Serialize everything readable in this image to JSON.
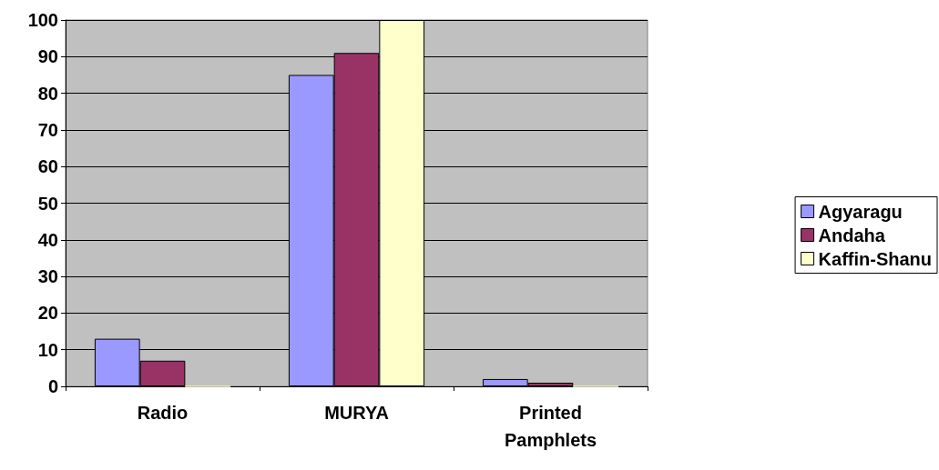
{
  "chart_data": {
    "type": "bar",
    "categories": [
      "Radio",
      "MURYA",
      "Printed\nPamphlets"
    ],
    "series": [
      {
        "name": "Agyaragu",
        "color": "#9999ff",
        "values": [
          13,
          85,
          2
        ]
      },
      {
        "name": "Andaha",
        "color": "#993366",
        "values": [
          7,
          91,
          1
        ]
      },
      {
        "name": "Kaffin-Shanu",
        "color": "#ffffcc",
        "values": [
          0,
          100,
          0
        ]
      }
    ],
    "ylim": [
      0,
      100
    ],
    "yticks": [
      0,
      10,
      20,
      30,
      40,
      50,
      60,
      70,
      80,
      90,
      100
    ],
    "grid": "y",
    "legend": "right"
  }
}
